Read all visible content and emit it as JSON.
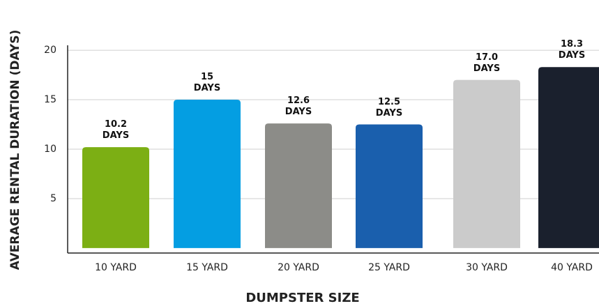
{
  "chart_data": {
    "type": "bar",
    "y_label": "AVERAGE RENTAL DURATION (DAYS)",
    "x_label": "DUMPSTER SIZE",
    "categories": [
      "10 YARD",
      "15 YARD",
      "20 YARD",
      "25 YARD",
      "30 YARD",
      "40 YARD"
    ],
    "values": [
      10.2,
      15,
      12.6,
      12.5,
      17.0,
      18.3
    ],
    "value_labels": [
      "10.2 DAYS",
      "15 DAYS",
      "12.6 DAYS",
      "12.5 DAYS",
      "17.0 DAYS",
      "18.3 DAYS"
    ],
    "colors": [
      "#7caf14",
      "#049ee2",
      "#8c8c88",
      "#1a5fad",
      "#cbcbcb",
      "#1a202d"
    ],
    "ylim": [
      -0.5,
      20.5
    ],
    "yticks": [
      5,
      10,
      15,
      20
    ],
    "grid": true
  }
}
